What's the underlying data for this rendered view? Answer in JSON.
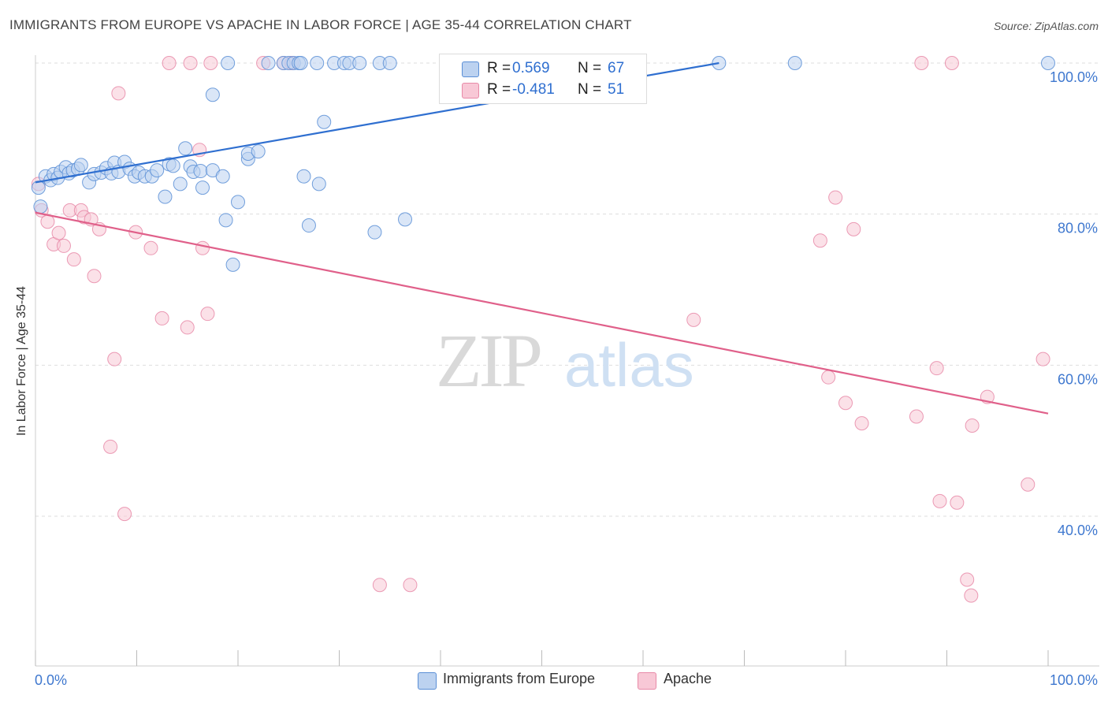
{
  "title": "IMMIGRANTS FROM EUROPE VS APACHE IN LABOR FORCE | AGE 35-44 CORRELATION CHART",
  "source": "Source: ZipAtlas.com",
  "watermark": {
    "zip": "ZIP",
    "atlas": "atlas"
  },
  "legend_box": {
    "rows": [
      {
        "r_label": "R =",
        "r_value": "0.569",
        "n_label": "N =",
        "n_value": "67"
      },
      {
        "r_label": "R =",
        "r_value": "-0.481",
        "n_label": "N =",
        "n_value": "51"
      }
    ]
  },
  "bottom_legend": {
    "blue": "Immigrants from Europe",
    "pink": "Apache"
  },
  "colors": {
    "blue": "#5b8fd6",
    "blue_fill": "#bcd2f0",
    "blue_line": "#2f6fd0",
    "pink": "#e88aa8",
    "pink_fill": "#f8c8d6",
    "pink_line": "#e0608a",
    "axis_label": "#3f78cf"
  },
  "chart_data": {
    "type": "scatter",
    "xlabel": "",
    "ylabel": "In Labor Force | Age 35-44",
    "xlim": [
      0,
      100
    ],
    "ylim": [
      20,
      102
    ],
    "x_tick_labels": [
      "0.0%",
      "100.0%"
    ],
    "y_ticks": [
      40,
      60,
      80,
      100
    ],
    "y_tick_labels": [
      "40.0%",
      "60.0%",
      "80.0%",
      "100.0%"
    ],
    "series": [
      {
        "name": "Immigrants from Europe",
        "r": 0.569,
        "n": 67,
        "trend": {
          "x": [
            0,
            67.5
          ],
          "y": [
            84.2,
            100
          ]
        },
        "points": [
          [
            0.3,
            83.5
          ],
          [
            0.5,
            81.0
          ],
          [
            1.0,
            85.0
          ],
          [
            1.5,
            84.5
          ],
          [
            1.8,
            85.3
          ],
          [
            2.2,
            84.8
          ],
          [
            2.5,
            85.6
          ],
          [
            3.0,
            86.2
          ],
          [
            3.3,
            85.4
          ],
          [
            3.7,
            85.8
          ],
          [
            4.2,
            86.0
          ],
          [
            4.5,
            86.5
          ],
          [
            5.3,
            84.2
          ],
          [
            5.8,
            85.3
          ],
          [
            6.5,
            85.5
          ],
          [
            7.0,
            86.1
          ],
          [
            7.5,
            85.4
          ],
          [
            7.8,
            86.8
          ],
          [
            8.2,
            85.6
          ],
          [
            8.8,
            86.9
          ],
          [
            9.3,
            86.0
          ],
          [
            9.8,
            85.0
          ],
          [
            10.2,
            85.5
          ],
          [
            10.8,
            85.0
          ],
          [
            11.5,
            85.0
          ],
          [
            12.0,
            85.8
          ],
          [
            12.8,
            82.3
          ],
          [
            13.2,
            86.6
          ],
          [
            13.6,
            86.4
          ],
          [
            14.3,
            84.0
          ],
          [
            14.8,
            88.7
          ],
          [
            15.3,
            86.3
          ],
          [
            15.6,
            85.6
          ],
          [
            16.3,
            85.7
          ],
          [
            16.5,
            83.5
          ],
          [
            17.5,
            85.8
          ],
          [
            17.5,
            95.8
          ],
          [
            18.5,
            85.0
          ],
          [
            18.8,
            79.2
          ],
          [
            19.5,
            73.3
          ],
          [
            20.0,
            81.6
          ],
          [
            21.0,
            87.3
          ],
          [
            21.0,
            88.0
          ],
          [
            22.0,
            88.3
          ],
          [
            26.5,
            85.0
          ],
          [
            27.0,
            78.5
          ],
          [
            28.0,
            84.0
          ],
          [
            28.5,
            92.2
          ],
          [
            33.5,
            77.6
          ],
          [
            36.5,
            79.3
          ],
          [
            19.0,
            100
          ],
          [
            23.0,
            100
          ],
          [
            24.5,
            100
          ],
          [
            25.0,
            100
          ],
          [
            25.5,
            100
          ],
          [
            26.0,
            100
          ],
          [
            26.2,
            100
          ],
          [
            27.8,
            100
          ],
          [
            29.5,
            100
          ],
          [
            30.5,
            100
          ],
          [
            31.0,
            100
          ],
          [
            32.0,
            100
          ],
          [
            34.0,
            100
          ],
          [
            35.0,
            100
          ],
          [
            67.5,
            100
          ],
          [
            75.0,
            100
          ],
          [
            100,
            100
          ]
        ]
      },
      {
        "name": "Apache",
        "r": -0.481,
        "n": 51,
        "trend": {
          "x": [
            0,
            100
          ],
          "y": [
            80.2,
            53.6
          ]
        },
        "points": [
          [
            0.3,
            84.0
          ],
          [
            0.6,
            80.5
          ],
          [
            1.2,
            79.0
          ],
          [
            1.8,
            76.0
          ],
          [
            2.3,
            77.5
          ],
          [
            2.8,
            75.8
          ],
          [
            3.4,
            80.5
          ],
          [
            3.8,
            74.0
          ],
          [
            4.5,
            80.5
          ],
          [
            4.8,
            79.6
          ],
          [
            5.5,
            79.3
          ],
          [
            5.8,
            71.8
          ],
          [
            6.3,
            78.0
          ],
          [
            7.4,
            49.2
          ],
          [
            7.8,
            60.8
          ],
          [
            8.2,
            96.0
          ],
          [
            8.8,
            40.3
          ],
          [
            9.9,
            77.6
          ],
          [
            11.4,
            75.5
          ],
          [
            12.5,
            66.2
          ],
          [
            13.2,
            100
          ],
          [
            15.0,
            65.0
          ],
          [
            15.3,
            100
          ],
          [
            16.2,
            88.5
          ],
          [
            16.5,
            75.5
          ],
          [
            17.0,
            66.8
          ],
          [
            17.3,
            100
          ],
          [
            22.5,
            100
          ],
          [
            24.5,
            100
          ],
          [
            25.3,
            100
          ],
          [
            34.0,
            30.9
          ],
          [
            37.0,
            30.9
          ],
          [
            65.0,
            66.0
          ],
          [
            77.5,
            76.5
          ],
          [
            78.3,
            58.4
          ],
          [
            79.0,
            82.2
          ],
          [
            80.0,
            55.0
          ],
          [
            80.8,
            78.0
          ],
          [
            81.6,
            52.3
          ],
          [
            87.0,
            53.2
          ],
          [
            87.5,
            100
          ],
          [
            89.0,
            59.6
          ],
          [
            89.3,
            42.0
          ],
          [
            91.0,
            41.8
          ],
          [
            92.0,
            31.6
          ],
          [
            92.4,
            29.5
          ],
          [
            92.5,
            52.0
          ],
          [
            94.0,
            55.8
          ],
          [
            98.0,
            44.2
          ],
          [
            99.5,
            60.8
          ],
          [
            90.5,
            100
          ]
        ]
      }
    ]
  }
}
